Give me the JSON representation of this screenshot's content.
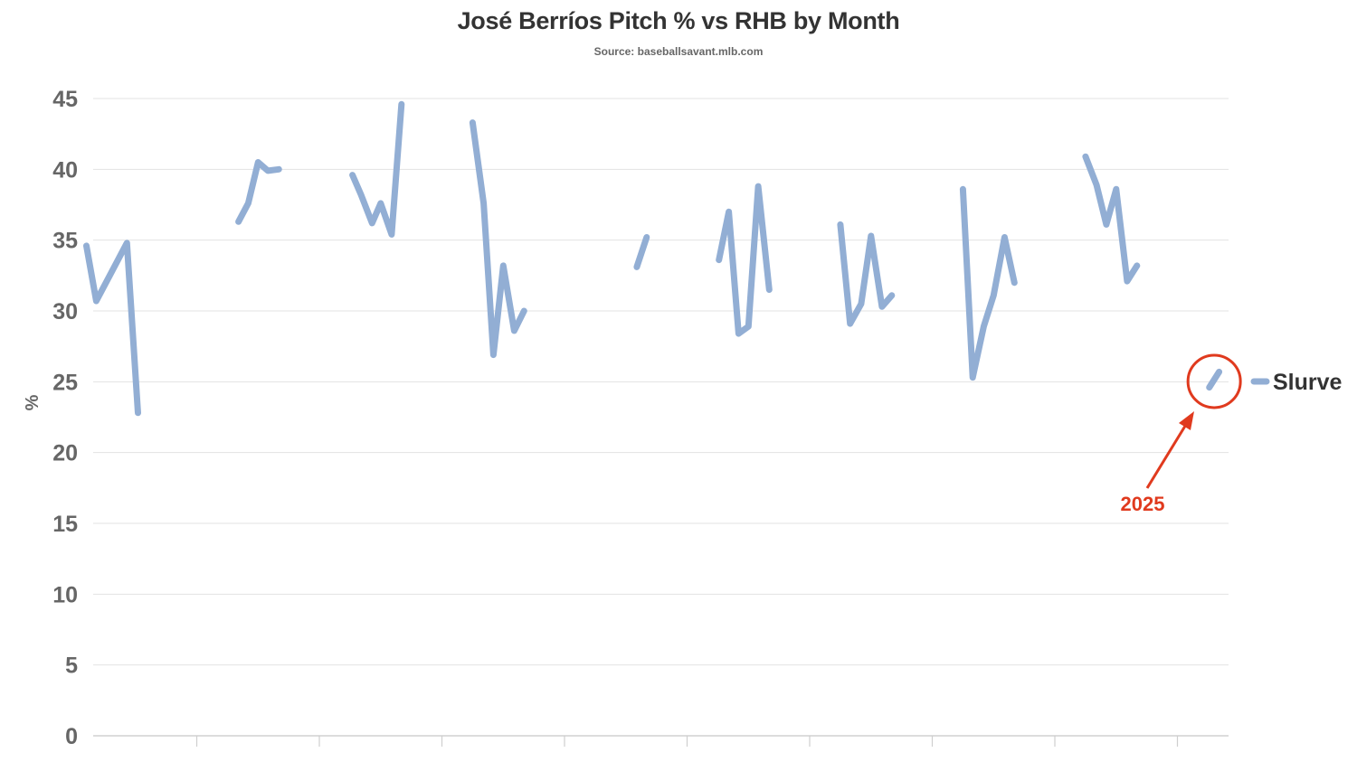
{
  "chart_data": {
    "type": "line",
    "title": "José Berríos Pitch % vs RHB by Month",
    "subtitle": "Source: baseballsavant.mlb.com",
    "ylabel": "%",
    "xlabel": "",
    "ylim": [
      0,
      45
    ],
    "yticks": [
      0,
      5,
      10,
      15,
      20,
      25,
      30,
      35,
      40,
      45
    ],
    "grid": true,
    "legend_position": "right",
    "series": [
      {
        "name": "Slurve",
        "color": "#92aed4",
        "segments": [
          [
            [
              0.1,
              34.6
            ],
            [
              0.18,
              30.7
            ],
            [
              0.43,
              34.8
            ],
            [
              0.52,
              22.8
            ]
          ],
          [
            [
              1.34,
              36.3
            ],
            [
              1.42,
              37.6
            ],
            [
              1.5,
              40.5
            ],
            [
              1.58,
              39.9
            ],
            [
              1.67,
              40.0
            ]
          ],
          [
            [
              2.27,
              39.6
            ],
            [
              2.34,
              38.2
            ],
            [
              2.43,
              36.2
            ],
            [
              2.5,
              37.6
            ],
            [
              2.59,
              35.4
            ],
            [
              2.67,
              44.6
            ]
          ],
          [
            [
              3.25,
              43.3
            ],
            [
              3.34,
              37.6
            ],
            [
              3.42,
              26.9
            ],
            [
              3.5,
              33.2
            ],
            [
              3.59,
              28.6
            ],
            [
              3.67,
              30.0
            ]
          ],
          [
            [
              4.59,
              33.1
            ],
            [
              4.67,
              35.2
            ]
          ],
          [
            [
              5.26,
              33.6
            ],
            [
              5.34,
              37.0
            ],
            [
              5.42,
              28.4
            ],
            [
              5.5,
              28.9
            ],
            [
              5.58,
              38.8
            ],
            [
              5.67,
              31.5
            ]
          ],
          [
            [
              6.25,
              36.1
            ],
            [
              6.33,
              29.1
            ],
            [
              6.42,
              30.5
            ],
            [
              6.5,
              35.3
            ],
            [
              6.59,
              30.3
            ],
            [
              6.67,
              31.1
            ]
          ],
          [
            [
              7.25,
              38.6
            ],
            [
              7.33,
              25.3
            ],
            [
              7.42,
              28.9
            ],
            [
              7.5,
              31.1
            ],
            [
              7.59,
              35.2
            ],
            [
              7.67,
              32.0
            ]
          ],
          [
            [
              8.25,
              40.9
            ],
            [
              8.34,
              38.9
            ],
            [
              8.42,
              36.1
            ],
            [
              8.5,
              38.6
            ],
            [
              8.59,
              32.1
            ],
            [
              8.67,
              33.2
            ]
          ],
          [
            [
              9.26,
              24.6
            ],
            [
              9.34,
              25.7
            ]
          ]
        ]
      }
    ],
    "x_ticks_count": 9,
    "annotation": {
      "text": "2025",
      "color": "#e03a1e"
    }
  }
}
